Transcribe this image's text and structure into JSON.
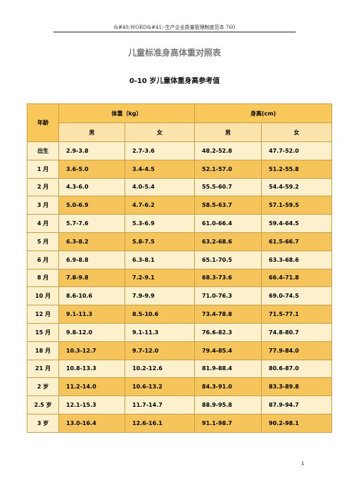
{
  "header": {
    "text": "&#40;WORD&#41;-生产企业质量管理制度范本 760"
  },
  "doc_title": "儿童标准身高体重对照表",
  "subtitle": "0-10 岁儿童体重身高参考值",
  "table": {
    "age_header": "年龄",
    "weight_header": "体重（kg）",
    "height_header": "身高(cm)",
    "male": "男",
    "female": "女",
    "rows": [
      {
        "age": "出生",
        "w_m": "2.9-3.8",
        "w_f": "2.7-3.6",
        "h_m": "48.2-52.8",
        "h_f": "47.7-52.0"
      },
      {
        "age": "1 月",
        "w_m": "3.6-5.0",
        "w_f": "3.4-4.5",
        "h_m": "52.1-57.0",
        "h_f": "51.2-55.8"
      },
      {
        "age": "2 月",
        "w_m": "4.3-6.0",
        "w_f": "4.0-5.4",
        "h_m": "55.5-60.7",
        "h_f": "54.4-59.2"
      },
      {
        "age": "3 月",
        "w_m": "5.0-6.9",
        "w_f": "4.7-6.2",
        "h_m": "58.5-63.7",
        "h_f": "57.1-59.5"
      },
      {
        "age": "4 月",
        "w_m": "5.7-7.6",
        "w_f": "5.3-6.9",
        "h_m": "61.0-66.4",
        "h_f": "59.4-64.5"
      },
      {
        "age": "5 月",
        "w_m": "6.3-8.2",
        "w_f": "5.8-7.5",
        "h_m": "63.2-68.6",
        "h_f": "61.5-66.7"
      },
      {
        "age": "6 月",
        "w_m": "6.9-8.8",
        "w_f": "6.3-8.1",
        "h_m": "65.1-70.5",
        "h_f": "63.3-68.6"
      },
      {
        "age": "8 月",
        "w_m": "7.8-9.8",
        "w_f": "7.2-9.1",
        "h_m": "68.3-73.6",
        "h_f": "66.4-71.8"
      },
      {
        "age": "10 月",
        "w_m": "8.6-10.6",
        "w_f": "7.9-9.9",
        "h_m": "71.0-76.3",
        "h_f": "69.0-74.5"
      },
      {
        "age": "12 月",
        "w_m": "9.1-11.3",
        "w_f": "8.5-10.6",
        "h_m": "73.4-78.8",
        "h_f": "71.5-77.1"
      },
      {
        "age": "15 月",
        "w_m": "9.8-12.0",
        "w_f": "9.1-11.3",
        "h_m": "76.6-82.3",
        "h_f": "74.8-80.7"
      },
      {
        "age": "18 月",
        "w_m": "10.3-12.7",
        "w_f": "9.7-12.0",
        "h_m": "79.4-85.4",
        "h_f": "77.9-84.0"
      },
      {
        "age": "21 月",
        "w_m": "10.8-13.3",
        "w_f": "10.2-12.6",
        "h_m": "81.9-88.4",
        "h_f": "80.6-87.0"
      },
      {
        "age": "2 岁",
        "w_m": "11.2-14.0",
        "w_f": "10.6-13.2",
        "h_m": "84.3-91.0",
        "h_f": "83.3-89.8"
      },
      {
        "age": "2.5 岁",
        "w_m": "12.1-15.3",
        "w_f": "11.7-14.7",
        "h_m": "88.9-95.8",
        "h_f": "87.9-94.7"
      },
      {
        "age": "3 岁",
        "w_m": "13.0-16.4",
        "w_f": "12.6-16.1",
        "h_m": "91.1-98.7",
        "h_f": "90.2-98.1"
      }
    ]
  },
  "page_number": "1"
}
